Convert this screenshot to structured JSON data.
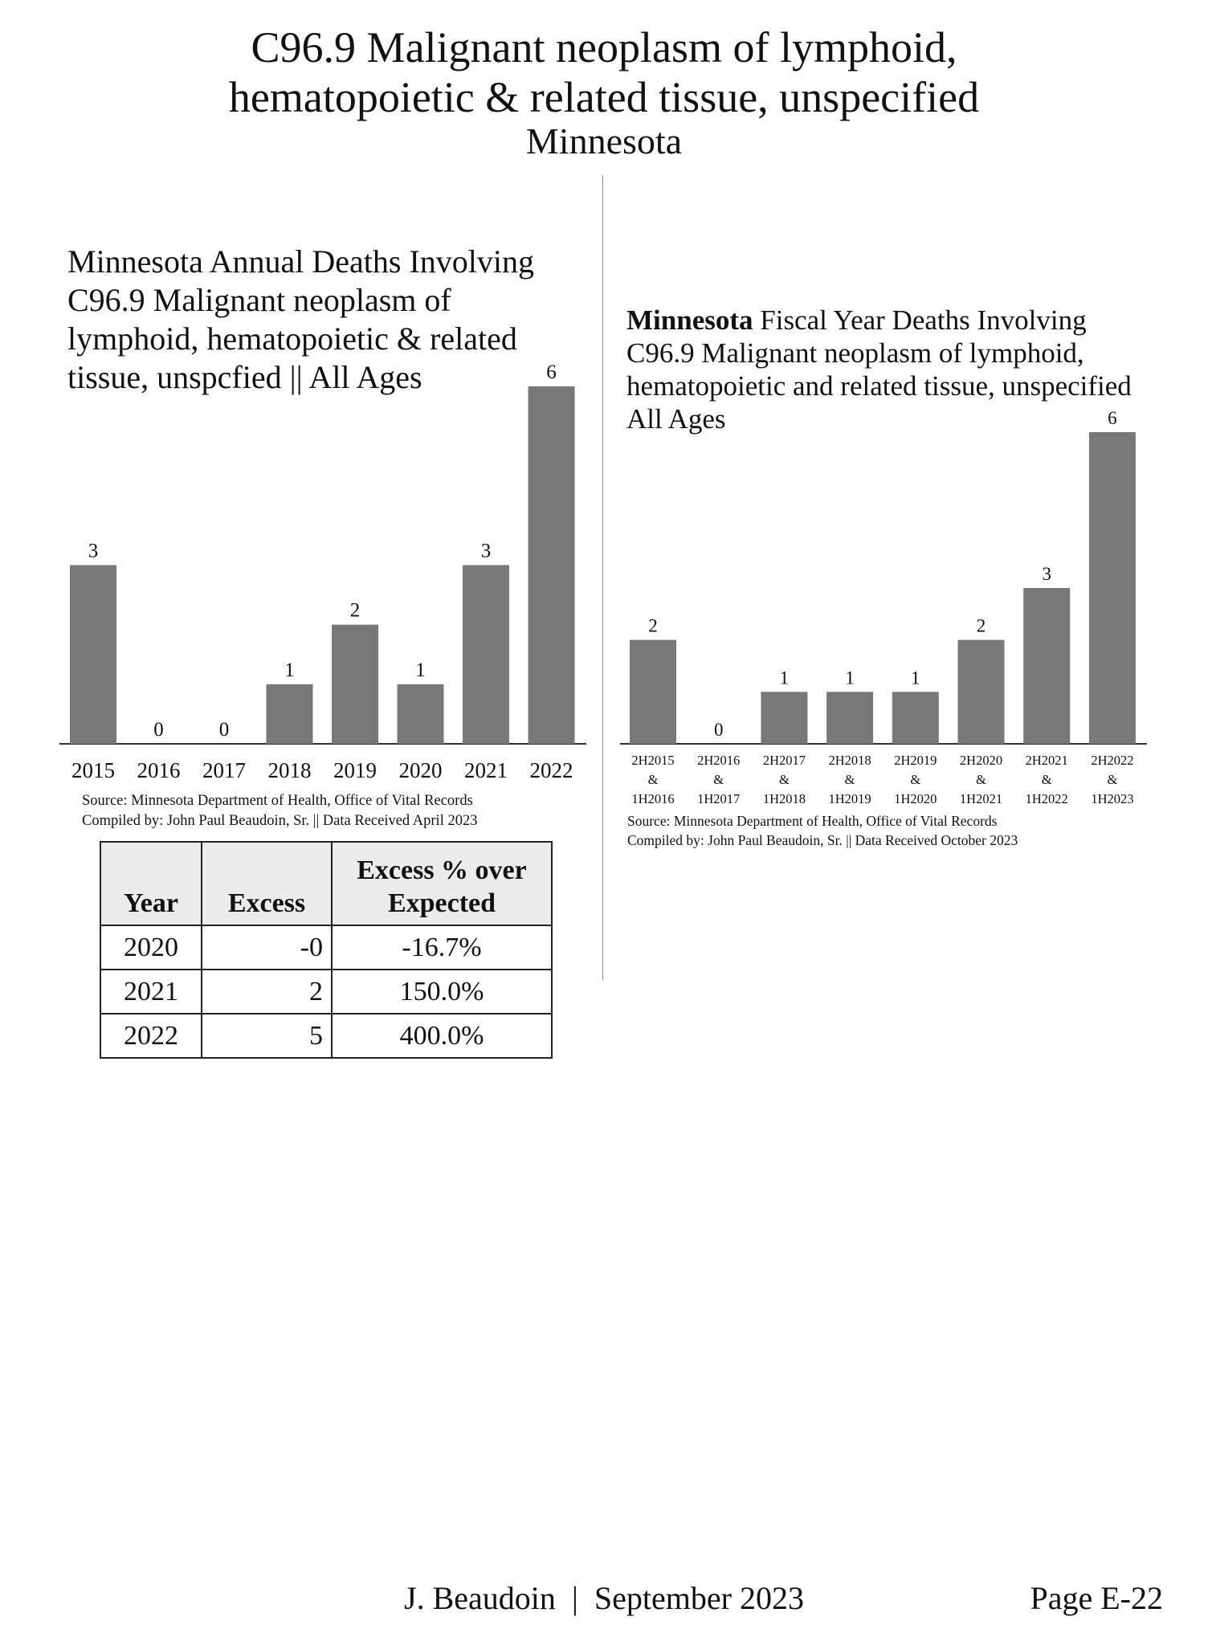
{
  "header": {
    "title_line1": "C96.9 Malignant neoplasm of lymphoid,",
    "title_line2": "hematopoietic & related tissue, unspecified",
    "subtitle": "Minnesota"
  },
  "chart_data": [
    {
      "type": "bar",
      "title": "Minnesota Annual Deaths Involving C96.9 Malignant neoplasm of lymphoid, hematopoietic & related tissue, unspcfied || All Ages",
      "title_lines": [
        "Minnesota Annual Deaths Involving",
        "C96.9 Malignant neoplasm of",
        "lymphoid, hematopoietic & related",
        "tissue, unspcfied || All Ages"
      ],
      "categories": [
        "2015",
        "2016",
        "2017",
        "2018",
        "2019",
        "2020",
        "2021",
        "2022"
      ],
      "values": [
        3,
        0,
        0,
        1,
        2,
        1,
        3,
        6
      ],
      "data_labels": [
        "3",
        "0",
        "0",
        "1",
        "2",
        "1",
        "3",
        "6"
      ],
      "ylim": [
        0,
        6
      ],
      "grid": false,
      "bar_color": "#787878",
      "source_lines": [
        "Source:  Minnesota Department of Health, Office of Vital Records",
        "Compiled by:  John Paul Beaudoin, Sr. || Data Received April 2023"
      ]
    },
    {
      "type": "bar",
      "title": "Minnesota Fiscal Year Deaths Involving C96.9 Malignant neoplasm of lymphoid, hematopoietic and related tissue, unspecified All Ages",
      "title_bold": "Minnesota",
      "title_rest": " Fiscal Year Deaths Involving",
      "title_lines": [
        "C96.9 Malignant neoplasm of lymphoid,",
        "hematopoietic and related tissue, unspecified",
        "All Ages"
      ],
      "categories": [
        [
          "2H2015",
          "&",
          "1H2016"
        ],
        [
          "2H2016",
          "&",
          "1H2017"
        ],
        [
          "2H2017",
          "&",
          "1H2018"
        ],
        [
          "2H2018",
          "&",
          "1H2019"
        ],
        [
          "2H2019",
          "&",
          "1H2020"
        ],
        [
          "2H2020",
          "&",
          "1H2021"
        ],
        [
          "2H2021",
          "&",
          "1H2022"
        ],
        [
          "2H2022",
          "&",
          "1H2023"
        ]
      ],
      "values": [
        2,
        0,
        1,
        1,
        1,
        2,
        3,
        6
      ],
      "data_labels": [
        "2",
        "0",
        "1",
        "1",
        "1",
        "2",
        "3",
        "6"
      ],
      "ylim": [
        0,
        6
      ],
      "grid": false,
      "bar_color": "#787878",
      "source_lines": [
        "Source:  Minnesota Department of Health, Office of Vital Records",
        "Compiled by:  John Paul Beaudoin, Sr. || Data Received October 2023"
      ]
    },
    {
      "type": "table",
      "headers": [
        "Year",
        "Excess",
        "Excess % over Expected"
      ],
      "rows": [
        [
          "2020",
          "-0",
          "-16.7%"
        ],
        [
          "2021",
          "2",
          "150.0%"
        ],
        [
          "2022",
          "5",
          "400.0%"
        ]
      ]
    }
  ],
  "footer": {
    "center": "J. Beaudoin  |  September 2023",
    "page": "Page E-22"
  }
}
